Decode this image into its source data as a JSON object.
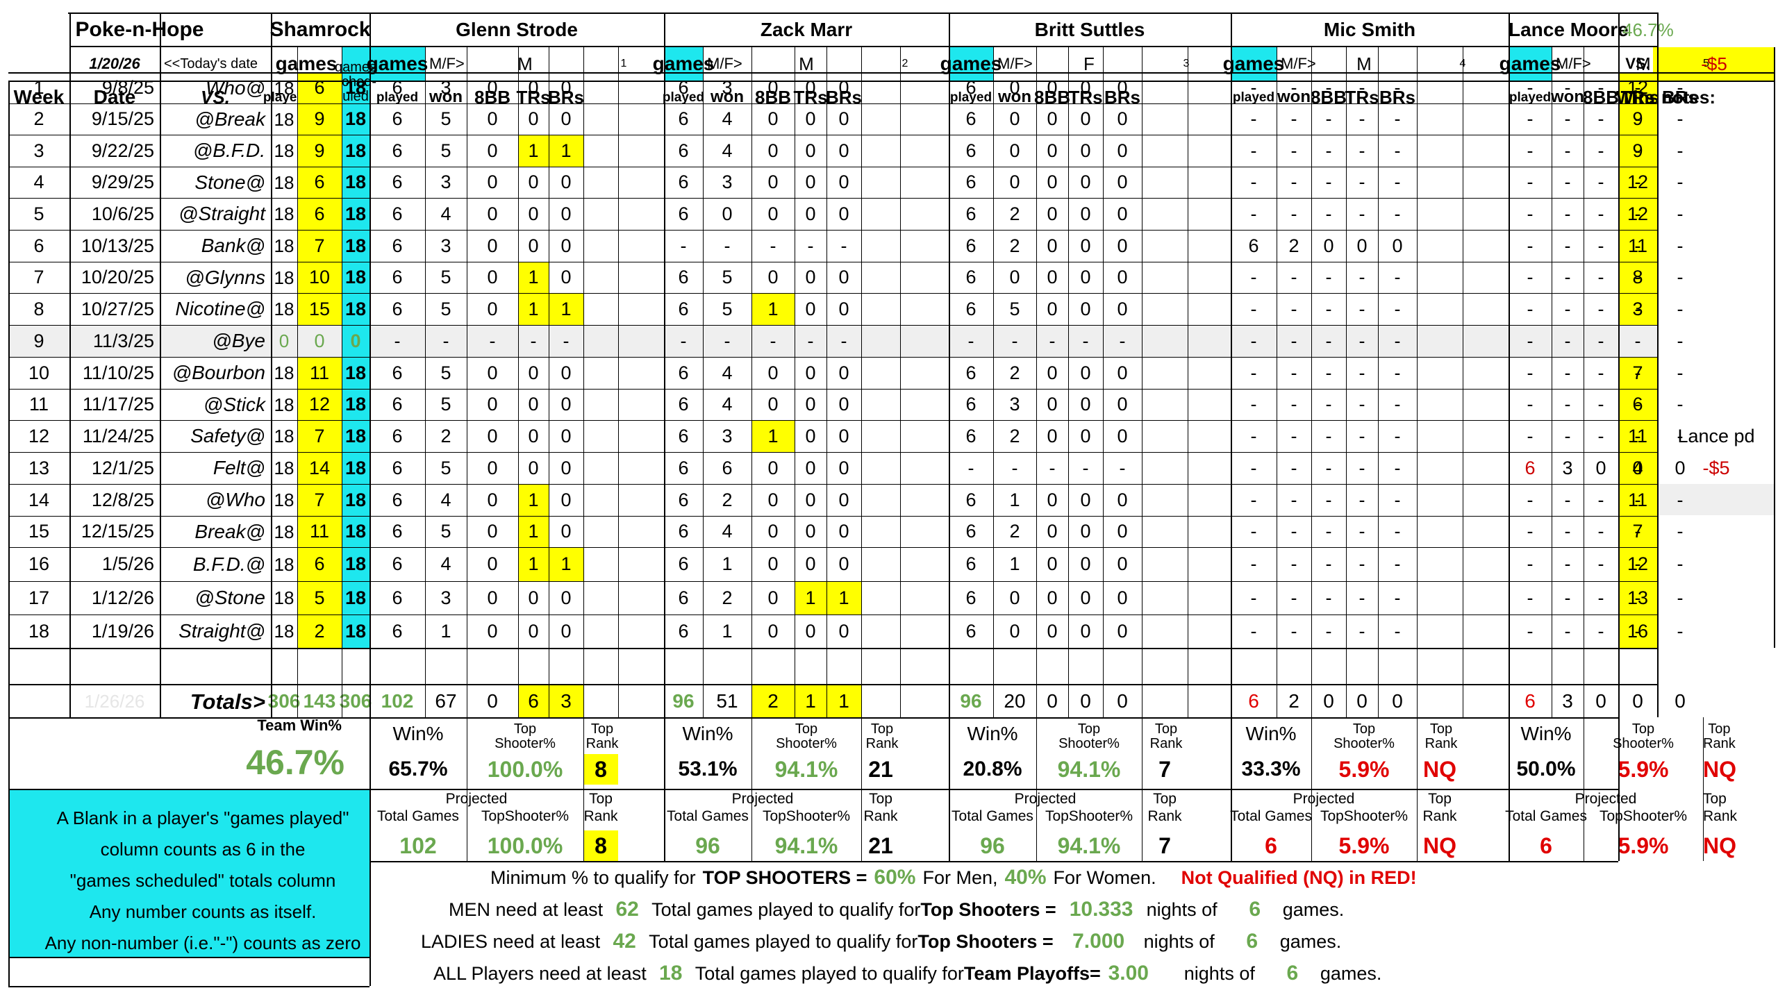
{
  "header": {
    "team_name": "Poke-n-Hope",
    "opponent_team": "Shamrock",
    "date": "1/20/26",
    "todays_date_label": "<<Today's date",
    "games_label": "games",
    "games_scheduled_label": "games\nsched-\nuled",
    "win_pct_top": "46.7%",
    "vs_label": "VS.",
    "balance": "-$5",
    "wins_label": "Wins",
    "notes_label": "notes:",
    "week_label": "Week",
    "date_label": "Date",
    "vs_col_label": "VS.",
    "played_label": "played",
    "won_label": "won",
    "mf_label": "M/F>",
    "bb8_label": "8BB",
    "trs_label": "TRs",
    "brs_label": "BRs"
  },
  "players": [
    {
      "name": "Glenn Strode",
      "gender": "M",
      "index": "1"
    },
    {
      "name": "Zack Marr",
      "gender": "M",
      "index": "2"
    },
    {
      "name": "Britt Suttles",
      "gender": "F",
      "index": "3"
    },
    {
      "name": "Mic Smith",
      "gender": "M",
      "index": "4"
    },
    {
      "name": "Lance Moore",
      "gender": "M",
      "index": "5"
    }
  ],
  "weeks": [
    {
      "week": "1",
      "date": "9/8/25",
      "vs": "Who@",
      "played": "18",
      "won": "6",
      "sched": "18",
      "p": [
        [
          "6",
          "3",
          "0",
          "0",
          "0"
        ],
        [
          "6",
          "3",
          "0",
          "0",
          "0"
        ],
        [
          "6",
          "0",
          "0",
          "0",
          "0"
        ],
        [
          "-",
          "-",
          "-",
          "-",
          "-"
        ],
        [
          "-",
          "-",
          "-",
          "-",
          "-"
        ]
      ],
      "wins": "12",
      "note": ""
    },
    {
      "week": "2",
      "date": "9/15/25",
      "vs": "@Break",
      "played": "18",
      "won": "9",
      "sched": "18",
      "p": [
        [
          "6",
          "5",
          "0",
          "0",
          "0"
        ],
        [
          "6",
          "4",
          "0",
          "0",
          "0"
        ],
        [
          "6",
          "0",
          "0",
          "0",
          "0"
        ],
        [
          "-",
          "-",
          "-",
          "-",
          "-"
        ],
        [
          "-",
          "-",
          "-",
          "-",
          "-"
        ]
      ],
      "wins": "9",
      "note": ""
    },
    {
      "week": "3",
      "date": "9/22/25",
      "vs": "@B.F.D.",
      "played": "18",
      "won": "9",
      "sched": "18",
      "p": [
        [
          "6",
          "5",
          "0",
          "1",
          "1"
        ],
        [
          "6",
          "4",
          "0",
          "0",
          "0"
        ],
        [
          "6",
          "0",
          "0",
          "0",
          "0"
        ],
        [
          "-",
          "-",
          "-",
          "-",
          "-"
        ],
        [
          "-",
          "-",
          "-",
          "-",
          "-"
        ]
      ],
      "wins": "9",
      "note": ""
    },
    {
      "week": "4",
      "date": "9/29/25",
      "vs": "Stone@",
      "played": "18",
      "won": "6",
      "sched": "18",
      "p": [
        [
          "6",
          "3",
          "0",
          "0",
          "0"
        ],
        [
          "6",
          "3",
          "0",
          "0",
          "0"
        ],
        [
          "6",
          "0",
          "0",
          "0",
          "0"
        ],
        [
          "-",
          "-",
          "-",
          "-",
          "-"
        ],
        [
          "-",
          "-",
          "-",
          "-",
          "-"
        ]
      ],
      "wins": "12",
      "note": ""
    },
    {
      "week": "5",
      "date": "10/6/25",
      "vs": "@Straight",
      "played": "18",
      "won": "6",
      "sched": "18",
      "p": [
        [
          "6",
          "4",
          "0",
          "0",
          "0"
        ],
        [
          "6",
          "0",
          "0",
          "0",
          "0"
        ],
        [
          "6",
          "2",
          "0",
          "0",
          "0"
        ],
        [
          "-",
          "-",
          "-",
          "-",
          "-"
        ],
        [
          "-",
          "-",
          "-",
          "-",
          "-"
        ]
      ],
      "wins": "12",
      "note": ""
    },
    {
      "week": "6",
      "date": "10/13/25",
      "vs": "Bank@",
      "played": "18",
      "won": "7",
      "sched": "18",
      "p": [
        [
          "6",
          "3",
          "0",
          "0",
          "0"
        ],
        [
          "-",
          "-",
          "-",
          "-",
          "-"
        ],
        [
          "6",
          "2",
          "0",
          "0",
          "0"
        ],
        [
          "6",
          "2",
          "0",
          "0",
          "0"
        ],
        [
          "-",
          "-",
          "-",
          "-",
          "-"
        ]
      ],
      "wins": "11",
      "note": ""
    },
    {
      "week": "7",
      "date": "10/20/25",
      "vs": "@Glynns",
      "played": "18",
      "won": "10",
      "sched": "18",
      "p": [
        [
          "6",
          "5",
          "0",
          "1",
          "0"
        ],
        [
          "6",
          "5",
          "0",
          "0",
          "0"
        ],
        [
          "6",
          "0",
          "0",
          "0",
          "0"
        ],
        [
          "-",
          "-",
          "-",
          "-",
          "-"
        ],
        [
          "-",
          "-",
          "-",
          "-",
          "-"
        ]
      ],
      "wins": "8",
      "note": ""
    },
    {
      "week": "8",
      "date": "10/27/25",
      "vs": "Nicotine@",
      "played": "18",
      "won": "15",
      "sched": "18",
      "p": [
        [
          "6",
          "5",
          "0",
          "1",
          "1"
        ],
        [
          "6",
          "5",
          "1",
          "0",
          "0"
        ],
        [
          "6",
          "5",
          "0",
          "0",
          "0"
        ],
        [
          "-",
          "-",
          "-",
          "-",
          "-"
        ],
        [
          "-",
          "-",
          "-",
          "-",
          "-"
        ]
      ],
      "wins": "3",
      "note": ""
    },
    {
      "week": "9",
      "date": "11/3/25",
      "vs": "@Bye",
      "played": "0",
      "won": "0",
      "sched": "0",
      "p": [
        [
          "-",
          "-",
          "-",
          "-",
          "-"
        ],
        [
          "-",
          "-",
          "-",
          "-",
          "-"
        ],
        [
          "-",
          "-",
          "-",
          "-",
          "-"
        ],
        [
          "-",
          "-",
          "-",
          "-",
          "-"
        ],
        [
          "-",
          "-",
          "-",
          "-",
          "-"
        ]
      ],
      "wins": "",
      "note": ""
    },
    {
      "week": "10",
      "date": "11/10/25",
      "vs": "@Bourbon",
      "played": "18",
      "won": "11",
      "sched": "18",
      "p": [
        [
          "6",
          "5",
          "0",
          "0",
          "0"
        ],
        [
          "6",
          "4",
          "0",
          "0",
          "0"
        ],
        [
          "6",
          "2",
          "0",
          "0",
          "0"
        ],
        [
          "-",
          "-",
          "-",
          "-",
          "-"
        ],
        [
          "-",
          "-",
          "-",
          "-",
          "-"
        ]
      ],
      "wins": "7",
      "note": ""
    },
    {
      "week": "11",
      "date": "11/17/25",
      "vs": "@Stick",
      "played": "18",
      "won": "12",
      "sched": "18",
      "p": [
        [
          "6",
          "5",
          "0",
          "0",
          "0"
        ],
        [
          "6",
          "4",
          "0",
          "0",
          "0"
        ],
        [
          "6",
          "3",
          "0",
          "0",
          "0"
        ],
        [
          "-",
          "-",
          "-",
          "-",
          "-"
        ],
        [
          "-",
          "-",
          "-",
          "-",
          "-"
        ]
      ],
      "wins": "6",
      "note": ""
    },
    {
      "week": "12",
      "date": "11/24/25",
      "vs": "Safety@",
      "played": "18",
      "won": "7",
      "sched": "18",
      "p": [
        [
          "6",
          "2",
          "0",
          "0",
          "0"
        ],
        [
          "6",
          "3",
          "1",
          "0",
          "0"
        ],
        [
          "6",
          "2",
          "0",
          "0",
          "0"
        ],
        [
          "-",
          "-",
          "-",
          "-",
          "-"
        ],
        [
          "-",
          "-",
          "-",
          "-",
          "-"
        ]
      ],
      "wins": "11",
      "note": "Lance pd"
    },
    {
      "week": "13",
      "date": "12/1/25",
      "vs": "Felt@",
      "played": "18",
      "won": "14",
      "sched": "18",
      "p": [
        [
          "6",
          "5",
          "0",
          "0",
          "0"
        ],
        [
          "6",
          "6",
          "0",
          "0",
          "0"
        ],
        [
          "-",
          "-",
          "-",
          "-",
          "-"
        ],
        [
          "-",
          "-",
          "-",
          "-",
          "-"
        ],
        [
          "6",
          "3",
          "0",
          "0",
          "0"
        ]
      ],
      "wins": "4",
      "note": "-$5"
    },
    {
      "week": "14",
      "date": "12/8/25",
      "vs": "@Who",
      "played": "18",
      "won": "7",
      "sched": "18",
      "p": [
        [
          "6",
          "4",
          "0",
          "1",
          "0"
        ],
        [
          "6",
          "2",
          "0",
          "0",
          "0"
        ],
        [
          "6",
          "1",
          "0",
          "0",
          "0"
        ],
        [
          "-",
          "-",
          "-",
          "-",
          "-"
        ],
        [
          "-",
          "-",
          "-",
          "-",
          "-"
        ]
      ],
      "wins": "11",
      "note": ""
    },
    {
      "week": "15",
      "date": "12/15/25",
      "vs": "Break@",
      "played": "18",
      "won": "11",
      "sched": "18",
      "p": [
        [
          "6",
          "5",
          "0",
          "1",
          "0"
        ],
        [
          "6",
          "4",
          "0",
          "0",
          "0"
        ],
        [
          "6",
          "2",
          "0",
          "0",
          "0"
        ],
        [
          "-",
          "-",
          "-",
          "-",
          "-"
        ],
        [
          "-",
          "-",
          "-",
          "-",
          "-"
        ]
      ],
      "wins": "7",
      "note": ""
    },
    {
      "week": "16",
      "date": "1/5/26",
      "vs": "B.F.D.@",
      "played": "18",
      "won": "6",
      "sched": "18",
      "p": [
        [
          "6",
          "4",
          "0",
          "1",
          "1"
        ],
        [
          "6",
          "1",
          "0",
          "0",
          "0"
        ],
        [
          "6",
          "1",
          "0",
          "0",
          "0"
        ],
        [
          "-",
          "-",
          "-",
          "-",
          "-"
        ],
        [
          "-",
          "-",
          "-",
          "-",
          "-"
        ]
      ],
      "wins": "12",
      "note": ""
    },
    {
      "week": "17",
      "date": "1/12/26",
      "vs": "@Stone",
      "played": "18",
      "won": "5",
      "sched": "18",
      "p": [
        [
          "6",
          "3",
          "0",
          "0",
          "0"
        ],
        [
          "6",
          "2",
          "0",
          "1",
          "1"
        ],
        [
          "6",
          "0",
          "0",
          "0",
          "0"
        ],
        [
          "-",
          "-",
          "-",
          "-",
          "-"
        ],
        [
          "-",
          "-",
          "-",
          "-",
          "-"
        ]
      ],
      "wins": "13",
      "note": ""
    },
    {
      "week": "18",
      "date": "1/19/26",
      "vs": "Straight@",
      "played": "18",
      "won": "2",
      "sched": "18",
      "p": [
        [
          "6",
          "1",
          "0",
          "0",
          "0"
        ],
        [
          "6",
          "1",
          "0",
          "0",
          "0"
        ],
        [
          "6",
          "0",
          "0",
          "0",
          "0"
        ],
        [
          "-",
          "-",
          "-",
          "-",
          "-"
        ],
        [
          "-",
          "-",
          "-",
          "-",
          "-"
        ]
      ],
      "wins": "16",
      "note": ""
    }
  ],
  "totals": {
    "next_date": "1/26/26",
    "label": "Totals>",
    "played": "306",
    "won": "143",
    "sched": "306",
    "p": [
      [
        "102",
        "67",
        "0",
        "6",
        "3"
      ],
      [
        "96",
        "51",
        "2",
        "1",
        "1"
      ],
      [
        "96",
        "20",
        "0",
        "0",
        "0"
      ],
      [
        "6",
        "2",
        "0",
        "0",
        "0"
      ],
      [
        "6",
        "3",
        "0",
        "0",
        "0"
      ]
    ]
  },
  "team_win": {
    "label": "Team Win%",
    "value": "46.7%"
  },
  "stats_labels": {
    "win_pct": "Win%",
    "top_shooter_pct": "Top\nShooter%",
    "top_rank": "Top\nRank",
    "projected": "Projected",
    "total_games": "Total Games",
    "top_shooter_compact": "TopShooter%",
    "top": "Top",
    "rank": "Rank"
  },
  "player_stats": [
    {
      "win_pct": "65.7%",
      "top_shooter_pct": "100.0%",
      "top_rank": "8",
      "proj_total_games": "102",
      "proj_top_shooter_pct": "100.0%",
      "proj_top_rank": "8"
    },
    {
      "win_pct": "53.1%",
      "top_shooter_pct": "94.1%",
      "top_rank": "21",
      "proj_total_games": "96",
      "proj_top_shooter_pct": "94.1%",
      "proj_top_rank": "21"
    },
    {
      "win_pct": "20.8%",
      "top_shooter_pct": "94.1%",
      "top_rank": "7",
      "proj_total_games": "96",
      "proj_top_shooter_pct": "94.1%",
      "proj_top_rank": "7"
    },
    {
      "win_pct": "33.3%",
      "top_shooter_pct": "5.9%",
      "top_rank": "NQ",
      "proj_total_games": "6",
      "proj_top_shooter_pct": "5.9%",
      "proj_top_rank": "NQ"
    },
    {
      "win_pct": "50.0%",
      "top_shooter_pct": "5.9%",
      "top_rank": "NQ",
      "proj_total_games": "6",
      "proj_top_shooter_pct": "5.9%",
      "proj_top_rank": "NQ"
    }
  ],
  "notes_box": {
    "line1": "A Blank in a player's \"games played\"",
    "line2": "column counts as    6    in the",
    "line3": "\"games scheduled\" totals column",
    "line4": "Any number counts as itself.",
    "line5": "Any non-number (i.e.\"-\") counts as zero"
  },
  "rules": {
    "r1_text": "Minimum % to qualify for",
    "r1_bold": "TOP SHOOTERS =",
    "r1_men": "60%",
    "r1_men_label": "For Men,",
    "r1_women": "40%",
    "r1_women_label": "For Women.",
    "r1_nq": "Not Qualified (NQ) in RED!",
    "r2_label": "MEN need at least",
    "r2_num": "62",
    "r2_text": "Total games played to qualify for",
    "r2_bold": "Top Shooters =",
    "r2_nights": "10.333",
    "r2_nights_of": "nights of",
    "r2_games": "6",
    "r2_games_label": "games.",
    "r3_label": "LADIES need at least",
    "r3_num": "42",
    "r3_text": "Total games played to qualify for",
    "r3_bold": "Top Shooters =",
    "r3_nights": "7.000",
    "r3_nights_of": "nights of",
    "r3_games": "6",
    "r3_games_label": "games.",
    "r4_label": "ALL Players need at least",
    "r4_num": "18",
    "r4_text": "Total games played to qualify for",
    "r4_bold": "Team Playoffs=",
    "r4_nights": "3.00",
    "r4_nights_of": "nights of",
    "r4_games": "6",
    "r4_games_label": "games."
  },
  "colors": {
    "highlight_yellow": "#ffff00",
    "highlight_cyan": "#1ee7ee",
    "green_text": "#6aa84f",
    "red_text": "#e00000"
  }
}
